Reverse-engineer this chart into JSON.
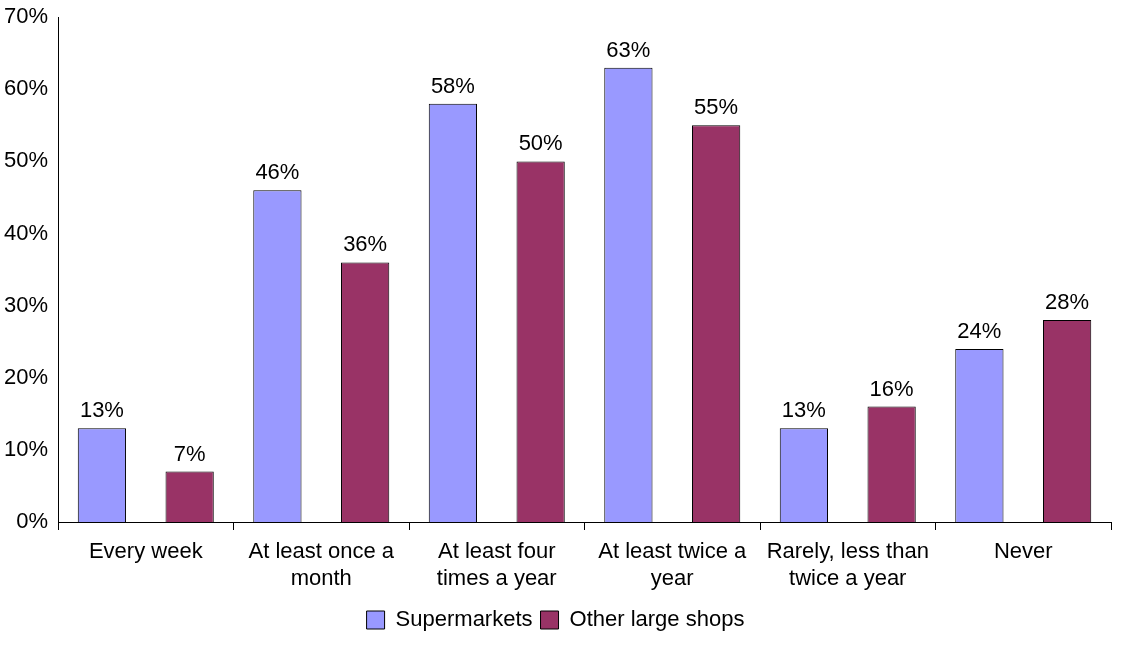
{
  "chart_data": {
    "type": "bar",
    "categories": [
      "Every week",
      "At least once a month",
      "At least four times a year",
      "At least twice a year",
      "Rarely, less than twice a year",
      "Never"
    ],
    "series": [
      {
        "name": "Supermarkets",
        "color": "#9999ff",
        "values": [
          13,
          46,
          58,
          63,
          13,
          24
        ],
        "value_labels": [
          "13%",
          "46%",
          "58%",
          "63%",
          "13%",
          "24%"
        ]
      },
      {
        "name": "Other large shops",
        "color": "#993366",
        "values": [
          7,
          36,
          50,
          55,
          16,
          28
        ],
        "value_labels": [
          "7%",
          "36%",
          "50%",
          "55%",
          "16%",
          "28%"
        ]
      }
    ],
    "ylim": [
      0,
      70
    ],
    "yticks": [
      {
        "value": 0,
        "label": "0%"
      },
      {
        "value": 10,
        "label": "10%"
      },
      {
        "value": 20,
        "label": "20%"
      },
      {
        "value": 30,
        "label": "30%"
      },
      {
        "value": 40,
        "label": "40%"
      },
      {
        "value": 50,
        "label": "50%"
      },
      {
        "value": 60,
        "label": "60%"
      },
      {
        "value": 70,
        "label": "70%"
      }
    ],
    "grid": false,
    "legend": "bottom"
  }
}
